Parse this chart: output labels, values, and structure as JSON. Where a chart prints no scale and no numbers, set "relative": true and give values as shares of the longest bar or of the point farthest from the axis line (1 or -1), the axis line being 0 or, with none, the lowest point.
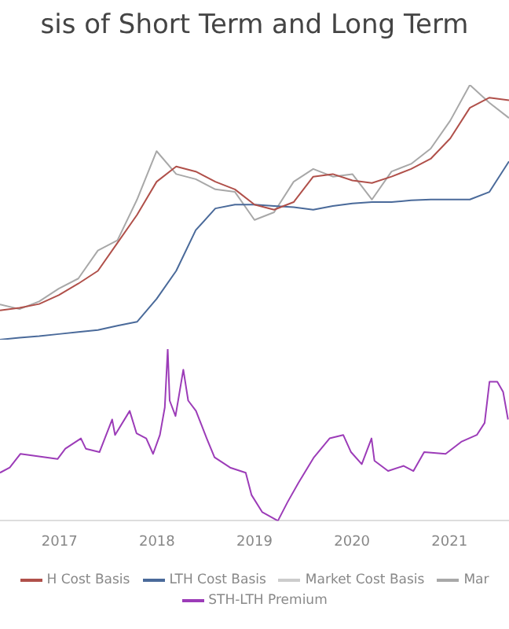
{
  "chart_data": [
    {
      "type": "line",
      "title": "sis of Short Term and Long Term",
      "relative": true,
      "categories": [
        null,
        null,
        null,
        null,
        null,
        null,
        null,
        null,
        null,
        null,
        null,
        null,
        null,
        null,
        null,
        null,
        null,
        null,
        null,
        null,
        null,
        null,
        null,
        null,
        null,
        null,
        null
      ],
      "tick_labels": false,
      "grid": false,
      "legend": "bottom",
      "marker": "none",
      "line_style": "solid",
      "series": [
        {
          "name": "H Cost Basis",
          "color": "#b0504a",
          "values": [
            0.115,
            0.125,
            0.14,
            0.175,
            0.22,
            0.27,
            0.38,
            0.49,
            0.62,
            0.68,
            0.66,
            0.62,
            0.59,
            0.53,
            0.51,
            0.54,
            0.64,
            0.65,
            0.625,
            0.615,
            0.64,
            0.67,
            0.71,
            0.79,
            0.91,
            0.95,
            0.94
          ]
        },
        {
          "name": "LTH Cost Basis",
          "color": "#4a6a9a",
          "values": [
            0,
            0.008,
            0.014,
            0.022,
            0.03,
            0.038,
            0.055,
            0.07,
            0.16,
            0.27,
            0.43,
            0.515,
            0.53,
            0.53,
            0.525,
            0.52,
            0.51,
            0.525,
            0.535,
            0.54,
            0.54,
            0.547,
            0.55,
            0.55,
            0.55,
            0.58,
            0.7
          ]
        },
        {
          "name": "Market Cost Basis",
          "color": "#cccccc",
          "values": [
            null,
            null,
            null,
            null,
            null,
            null,
            null,
            null,
            null,
            null,
            null,
            null,
            null,
            null,
            null,
            null,
            null,
            null,
            null,
            null,
            null,
            null,
            null,
            null,
            null,
            null,
            null
          ]
        },
        {
          "name": "Mar",
          "color": "#a8a8a8",
          "values": [
            0.138,
            0.12,
            0.15,
            0.2,
            0.24,
            0.35,
            0.39,
            0.55,
            0.74,
            0.65,
            0.63,
            0.59,
            0.58,
            0.47,
            0.5,
            0.62,
            0.67,
            0.64,
            0.65,
            0.55,
            0.66,
            0.69,
            0.75,
            0.86,
            1,
            0.93,
            0.87
          ]
        }
      ]
    },
    {
      "type": "line",
      "relative": true,
      "xlim": [
        2016.39,
        2021.61
      ],
      "xticks": [
        2017,
        2018,
        2019,
        2020,
        2021
      ],
      "tick_labels": "x",
      "grid": false,
      "legend": "bottom",
      "marker": "none",
      "line_style": "solid",
      "series": [
        {
          "name": "STH-LTH Premium",
          "color": "#9c3cb8",
          "x": [
            2016.39,
            2016.49,
            2016.6,
            2016.98,
            2017.06,
            2017.22,
            2017.27,
            2017.41,
            2017.54,
            2017.57,
            2017.72,
            2017.79,
            2017.89,
            2017.96,
            2018.03,
            2018.08,
            2018.11,
            2018.13,
            2018.19,
            2018.27,
            2018.32,
            2018.4,
            2018.51,
            2018.59,
            2018.75,
            2018.91,
            2018.97,
            2019.08,
            2019.24,
            2019.34,
            2019.45,
            2019.61,
            2019.77,
            2019.91,
            2019.99,
            2020.1,
            2020.2,
            2020.23,
            2020.37,
            2020.53,
            2020.63,
            2020.74,
            2020.96,
            2021.12,
            2021.28,
            2021.36,
            2021.41,
            2021.49,
            2021.55,
            2021.6
          ],
          "values": [
            0.28,
            0.31,
            0.39,
            0.36,
            0.42,
            0.48,
            0.42,
            0.4,
            0.59,
            0.5,
            0.64,
            0.51,
            0.48,
            0.39,
            0.5,
            0.66,
            1,
            0.7,
            0.61,
            0.88,
            0.7,
            0.64,
            0.48,
            0.37,
            0.31,
            0.28,
            0.15,
            0.05,
            0,
            0.11,
            0.22,
            0.37,
            0.48,
            0.5,
            0.4,
            0.33,
            0.48,
            0.35,
            0.29,
            0.32,
            0.29,
            0.4,
            0.39,
            0.46,
            0.5,
            0.57,
            0.81,
            0.81,
            0.75,
            0.59
          ]
        }
      ]
    }
  ]
}
